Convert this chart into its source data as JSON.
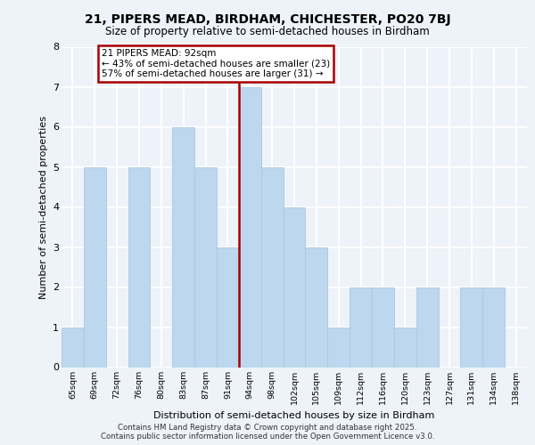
{
  "title1": "21, PIPERS MEAD, BIRDHAM, CHICHESTER, PO20 7BJ",
  "title2": "Size of property relative to semi-detached houses in Birdham",
  "xlabel": "Distribution of semi-detached houses by size in Birdham",
  "ylabel": "Number of semi-detached properties",
  "bin_labels": [
    "65sqm",
    "69sqm",
    "72sqm",
    "76sqm",
    "80sqm",
    "83sqm",
    "87sqm",
    "91sqm",
    "94sqm",
    "98sqm",
    "102sqm",
    "105sqm",
    "109sqm",
    "112sqm",
    "116sqm",
    "120sqm",
    "123sqm",
    "127sqm",
    "131sqm",
    "134sqm",
    "138sqm"
  ],
  "bin_values": [
    1,
    5,
    0,
    5,
    0,
    6,
    5,
    3,
    7,
    5,
    4,
    3,
    1,
    2,
    2,
    1,
    2,
    0,
    2,
    2,
    0
  ],
  "bar_color": "#bdd7ee",
  "bar_edge_color": "#aac8e0",
  "highlight_bar_index": 7,
  "highlight_line_color": "#aa0000",
  "annotation_line1": "21 PIPERS MEAD: 92sqm",
  "annotation_line2": "← 43% of semi-detached houses are smaller (23)",
  "annotation_line3": "57% of semi-detached houses are larger (31) →",
  "annotation_box_edge": "#aa0000",
  "ylim": [
    0,
    8
  ],
  "yticks": [
    0,
    1,
    2,
    3,
    4,
    5,
    6,
    7,
    8
  ],
  "background_color": "#eef2f9",
  "grid_color": "#ffffff",
  "footer_line1": "Contains HM Land Registry data © Crown copyright and database right 2025.",
  "footer_line2": "Contains public sector information licensed under the Open Government Licence v3.0."
}
